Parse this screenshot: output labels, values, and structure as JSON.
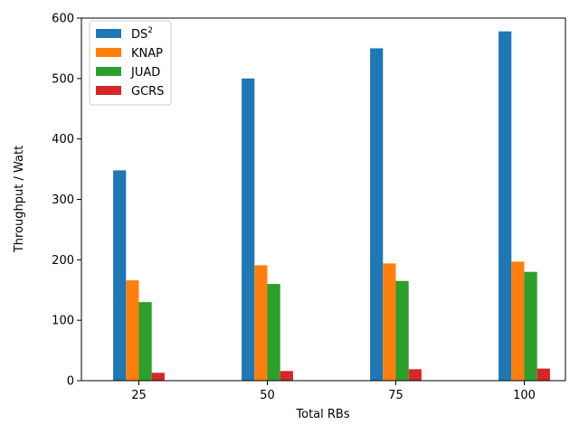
{
  "chart_data": {
    "type": "bar",
    "xlabel": "Total RBs",
    "ylabel": "Throughput / Watt",
    "categories": [
      "25",
      "50",
      "75",
      "100"
    ],
    "ylim": [
      0,
      600
    ],
    "yticks": [
      "0",
      "100",
      "200",
      "300",
      "400",
      "500",
      "600"
    ],
    "legend_position": "top-left",
    "grid": false,
    "series": [
      {
        "name": "DS",
        "name_superscript": "2",
        "color": "#1f77b4",
        "values": [
          348,
          500,
          550,
          578
        ]
      },
      {
        "name": "KNAP",
        "color": "#ff7f0e",
        "values": [
          166,
          191,
          194,
          197
        ]
      },
      {
        "name": "JUAD",
        "color": "#2ca02c",
        "values": [
          130,
          160,
          165,
          180
        ]
      },
      {
        "name": "GCRS",
        "color": "#d62728",
        "values": [
          13,
          16,
          19,
          20
        ]
      }
    ]
  }
}
